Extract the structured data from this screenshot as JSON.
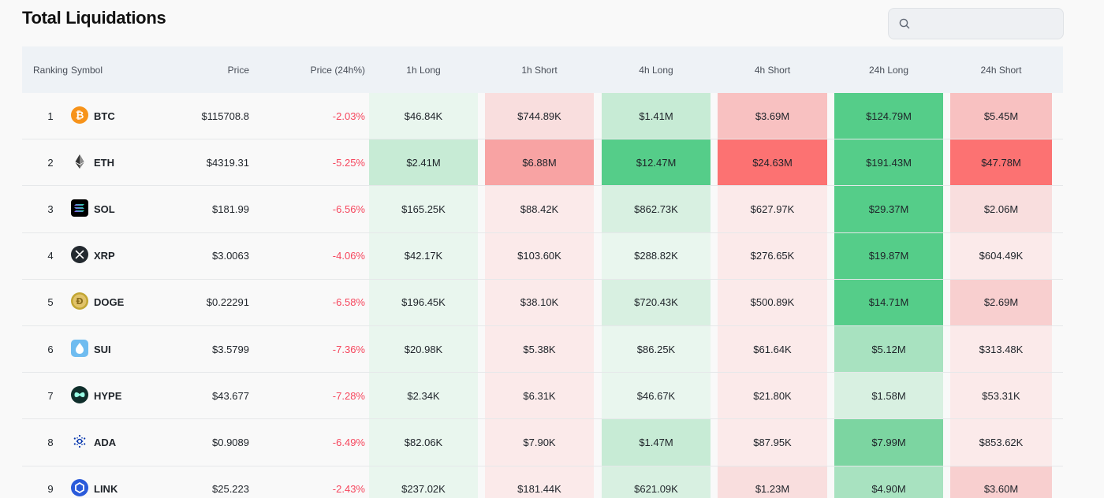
{
  "header": {
    "title": "Total Liquidations"
  },
  "search": {
    "placeholder": "",
    "value": ""
  },
  "table": {
    "columns": [
      "Ranking",
      "Symbol",
      "Price",
      "Price (24h%)",
      "1h Long",
      "1h Short",
      "4h Long",
      "4h Short",
      "24h Long",
      "24h Short"
    ],
    "rows": [
      {
        "rank": "1",
        "symbol": "BTC",
        "icon": "btc-icon",
        "price": "$115708.8",
        "change": "-2.03%",
        "h1l": "$46.84K",
        "h1s": "$744.89K",
        "h4l": "$1.41M",
        "h4s": "$3.69M",
        "h24l": "$124.79M",
        "h24s": "$5.45M"
      },
      {
        "rank": "2",
        "symbol": "ETH",
        "icon": "eth-icon",
        "price": "$4319.31",
        "change": "-5.25%",
        "h1l": "$2.41M",
        "h1s": "$6.88M",
        "h4l": "$12.47M",
        "h4s": "$24.63M",
        "h24l": "$191.43M",
        "h24s": "$47.78M"
      },
      {
        "rank": "3",
        "symbol": "SOL",
        "icon": "sol-icon",
        "price": "$181.99",
        "change": "-6.56%",
        "h1l": "$165.25K",
        "h1s": "$88.42K",
        "h4l": "$862.73K",
        "h4s": "$627.97K",
        "h24l": "$29.37M",
        "h24s": "$2.06M"
      },
      {
        "rank": "4",
        "symbol": "XRP",
        "icon": "xrp-icon",
        "price": "$3.0063",
        "change": "-4.06%",
        "h1l": "$42.17K",
        "h1s": "$103.60K",
        "h4l": "$288.82K",
        "h4s": "$276.65K",
        "h24l": "$19.87M",
        "h24s": "$604.49K"
      },
      {
        "rank": "5",
        "symbol": "DOGE",
        "icon": "doge-icon",
        "price": "$0.22291",
        "change": "-6.58%",
        "h1l": "$196.45K",
        "h1s": "$38.10K",
        "h4l": "$720.43K",
        "h4s": "$500.89K",
        "h24l": "$14.71M",
        "h24s": "$2.69M"
      },
      {
        "rank": "6",
        "symbol": "SUI",
        "icon": "sui-icon",
        "price": "$3.5799",
        "change": "-7.36%",
        "h1l": "$20.98K",
        "h1s": "$5.38K",
        "h4l": "$86.25K",
        "h4s": "$61.64K",
        "h24l": "$5.12M",
        "h24s": "$313.48K"
      },
      {
        "rank": "7",
        "symbol": "HYPE",
        "icon": "hype-icon",
        "price": "$43.677",
        "change": "-7.28%",
        "h1l": "$2.34K",
        "h1s": "$6.31K",
        "h4l": "$46.67K",
        "h4s": "$21.80K",
        "h24l": "$1.58M",
        "h24s": "$53.31K"
      },
      {
        "rank": "8",
        "symbol": "ADA",
        "icon": "ada-icon",
        "price": "$0.9089",
        "change": "-6.49%",
        "h1l": "$82.06K",
        "h1s": "$7.90K",
        "h4l": "$1.47M",
        "h4s": "$87.95K",
        "h24l": "$7.99M",
        "h24s": "$853.62K"
      },
      {
        "rank": "9",
        "symbol": "LINK",
        "icon": "link-icon",
        "price": "$25.223",
        "change": "-2.43%",
        "h1l": "$237.02K",
        "h1s": "$181.44K",
        "h4l": "$621.09K",
        "h4s": "$1.23M",
        "h24l": "$4.90M",
        "h24s": "$3.60M"
      }
    ]
  },
  "colors": {
    "long_scale": [
      "#e9f6ee",
      "#d8f0e1",
      "#c7ebd5",
      "#a8e2c0",
      "#7cd5a1",
      "#55cd89"
    ],
    "short_scale": [
      "#fbeaea",
      "#f9dede",
      "#f8cfcf",
      "#f8c1c1",
      "#f8a3a3",
      "#fc7272"
    ],
    "negative": "#f6465d",
    "header_bg": "#eef2f6"
  }
}
